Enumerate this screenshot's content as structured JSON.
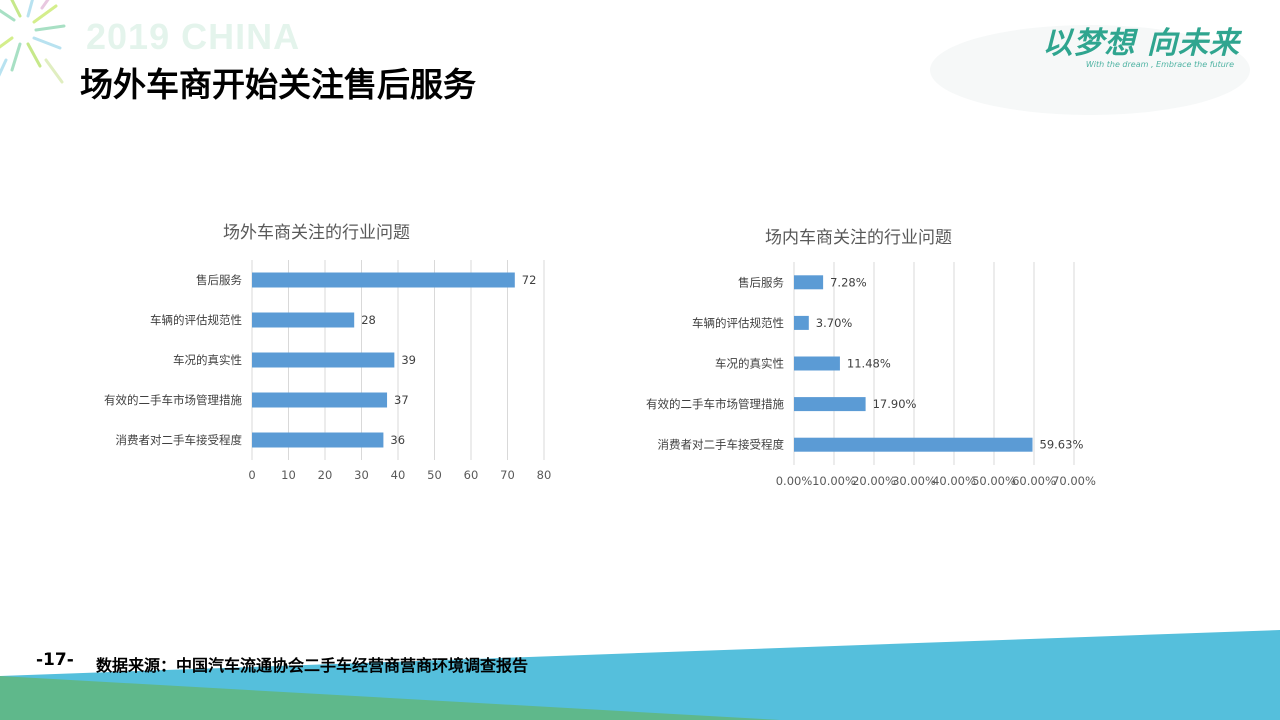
{
  "header": {
    "watermark": "2019 CHINA",
    "logo_cn": "以梦想 向未来",
    "logo_en": "With the dream , Embrace the future",
    "logo_small": "",
    "title": "场外车商开始关注售后服务"
  },
  "footer": {
    "page_number": "-17-",
    "source": "数据来源：中国汽车流通协会二手车经营商营商环境调查报告"
  },
  "colors": {
    "bar": "#5b9bd5",
    "accent": "#2fa58f",
    "teal_band": "#55bfdc",
    "green_band": "#5fb88b"
  },
  "chart_data": [
    {
      "type": "bar",
      "orientation": "horizontal",
      "title": "场外车商关注的行业问题",
      "categories": [
        "售后服务",
        "车辆的评估规范性",
        "车况的真实性",
        "有效的二手车市场管理措施",
        "消费者对二手车接受程度"
      ],
      "values": [
        72,
        28,
        39,
        37,
        36
      ],
      "value_labels": [
        "72",
        "28",
        "39",
        "37",
        "36"
      ],
      "xlim": [
        0,
        80
      ],
      "ticks": [
        0,
        10,
        20,
        30,
        40,
        50,
        60,
        70,
        80
      ],
      "tick_labels": [
        "0",
        "10",
        "20",
        "30",
        "40",
        "50",
        "60",
        "70",
        "80"
      ],
      "grid": true,
      "xlabel": "",
      "ylabel": ""
    },
    {
      "type": "bar",
      "orientation": "horizontal",
      "title": "场内车商关注的行业问题",
      "categories": [
        "售后服务",
        "车辆的评估规范性",
        "车况的真实性",
        "有效的二手车市场管理措施",
        "消费者对二手车接受程度"
      ],
      "values": [
        7.28,
        3.7,
        11.48,
        17.9,
        59.63
      ],
      "value_labels": [
        "7.28%",
        "3.70%",
        "11.48%",
        "17.90%",
        "59.63%"
      ],
      "xlim": [
        0,
        70
      ],
      "ticks": [
        0,
        10,
        20,
        30,
        40,
        50,
        60,
        70
      ],
      "tick_labels": [
        "0.00%",
        "10.00%",
        "20.00%",
        "30.00%",
        "40.00%",
        "50.00%",
        "60.00%",
        "70.00%"
      ],
      "grid": true,
      "xlabel": "",
      "ylabel": ""
    }
  ]
}
